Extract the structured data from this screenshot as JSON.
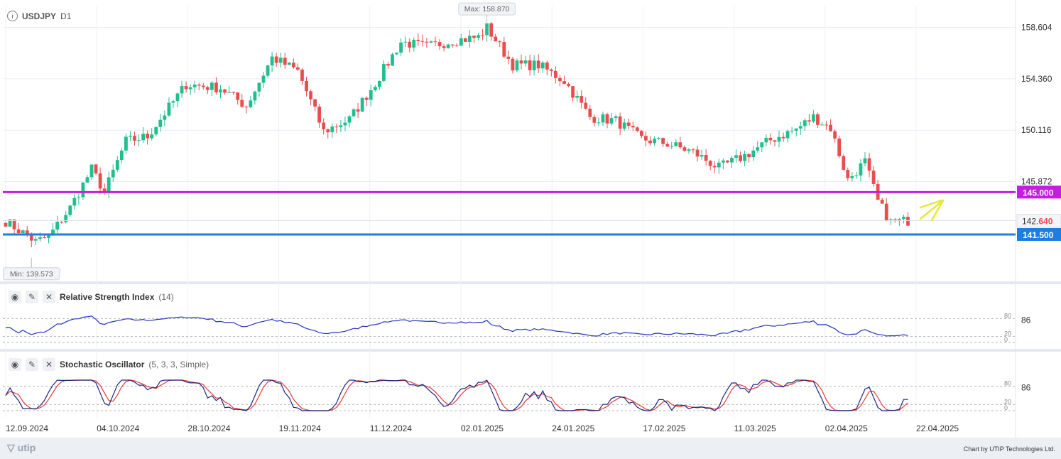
{
  "symbol": "USDJPY",
  "timeframe": "D1",
  "price_labels": {
    "max": "Max: 158.870",
    "min": "Min: 139.573",
    "level_upper": "145.000",
    "level_lower": "141.500",
    "current_main": "142.",
    "current_frac": "640"
  },
  "indicators": {
    "rsi": {
      "name": "Relative Strength Index",
      "params": "(14)",
      "value": "86",
      "levels": [
        "80",
        "20",
        "0"
      ]
    },
    "stoch": {
      "name": "Stochastic Oscillator",
      "params": "(5, 3, 3, Simple)",
      "value": "86",
      "levels": [
        "80",
        "20",
        "0"
      ]
    }
  },
  "footer": {
    "logo": "utip",
    "credit": "Chart by UTIP Technologies Ltd."
  },
  "colors": {
    "up": "#1fbf8f",
    "down": "#eb4d4d",
    "upper_level": "#c31fe0",
    "lower_level": "#1f7de0",
    "rsi": "#2233bb",
    "stoch_k": "#1a237e",
    "stoch_d": "#e53935",
    "arrow": "#e6e63c"
  },
  "chart_data": {
    "type": "candlestick",
    "symbol": "USDJPY",
    "timeframe": "D1",
    "y_ticks": [
      "158.604",
      "154.360",
      "150.116",
      "145.872"
    ],
    "ylim": [
      137.8,
      160.4
    ],
    "x_ticks": [
      "12.09.2024",
      "04.10.2024",
      "28.10.2024",
      "19.11.2024",
      "11.12.2024",
      "02.01.2025",
      "24.01.2025",
      "17.02.2025",
      "11.03.2025",
      "02.04.2025",
      "22.04.2025"
    ],
    "horizontal_levels": [
      145.0,
      141.5
    ],
    "current_price": 142.64,
    "max": 158.87,
    "min": 139.573,
    "ohlc_anchors": [
      [
        0,
        142.6
      ],
      [
        7,
        140.9
      ],
      [
        10,
        141.3
      ],
      [
        15,
        143.7
      ],
      [
        20,
        146.9
      ],
      [
        23,
        145.0
      ],
      [
        28,
        149.2
      ],
      [
        33,
        149.6
      ],
      [
        42,
        153.9
      ],
      [
        50,
        153.6
      ],
      [
        56,
        152.1
      ],
      [
        62,
        156.1
      ],
      [
        68,
        155.0
      ],
      [
        74,
        150.0
      ],
      [
        80,
        151.0
      ],
      [
        86,
        154.0
      ],
      [
        92,
        157.4
      ],
      [
        98,
        157.0
      ],
      [
        104,
        157.5
      ],
      [
        110,
        157.8
      ],
      [
        112,
        158.6
      ],
      [
        118,
        155.5
      ],
      [
        124,
        155.5
      ],
      [
        130,
        154.2
      ],
      [
        136,
        151.2
      ],
      [
        142,
        150.9
      ],
      [
        148,
        149.4
      ],
      [
        154,
        149.0
      ],
      [
        160,
        148.3
      ],
      [
        166,
        147.0
      ],
      [
        172,
        148.0
      ],
      [
        178,
        149.3
      ],
      [
        184,
        150.2
      ],
      [
        188,
        151.2
      ],
      [
        192,
        150.3
      ],
      [
        196,
        146.0
      ],
      [
        200,
        147.5
      ],
      [
        203,
        144.2
      ],
      [
        206,
        142.5
      ],
      [
        210,
        142.64
      ]
    ],
    "rsi": {
      "levels": [
        80,
        20,
        0
      ],
      "current_label": "86"
    },
    "stochastic": {
      "params": "5, 3, 3, Simple",
      "levels": [
        80,
        20,
        0
      ],
      "current_label": "86"
    }
  }
}
